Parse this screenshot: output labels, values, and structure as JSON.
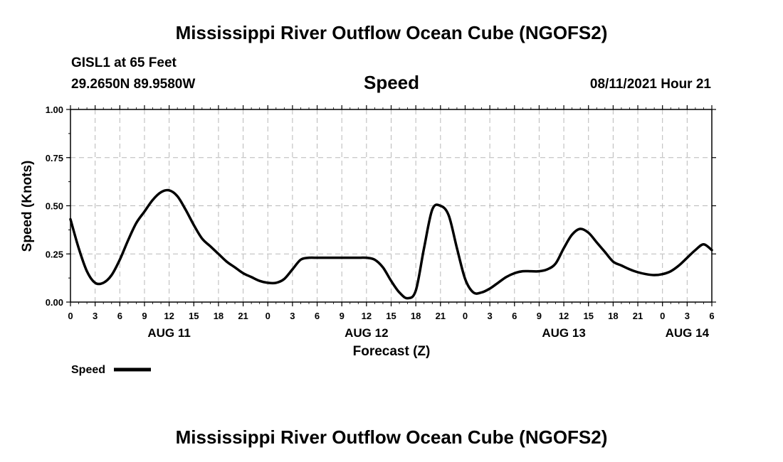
{
  "header": {
    "title_top": "Mississippi River Outflow Ocean Cube (NGOFS2)",
    "station": "GISL1 at 65 Feet",
    "coords": "29.2650N  89.9580W",
    "timestamp": "08/11/2021 Hour 21"
  },
  "footer": {
    "title_bottom": "Mississippi River Outflow Ocean Cube (NGOFS2)"
  },
  "colors": {
    "line": "#000000",
    "grid": "#b8b8b8"
  },
  "chart_data": {
    "type": "line",
    "title": "Speed",
    "xlabel": "Forecast (Z)",
    "ylabel": "Speed (Knots)",
    "xlim": [
      0,
      78
    ],
    "ylim": [
      0,
      1
    ],
    "grid": true,
    "legend_position": "bottom-left",
    "y_ticks": [
      0,
      0.25,
      0.5,
      0.75,
      1
    ],
    "y_tick_labels": [
      "0.00",
      "0.25",
      "0.50",
      "0.75",
      "1.00"
    ],
    "x_ticks": [
      0,
      3,
      6,
      9,
      12,
      15,
      18,
      21,
      24,
      27,
      30,
      33,
      36,
      39,
      42,
      45,
      48,
      51,
      54,
      57,
      60,
      63,
      66,
      69,
      72,
      75,
      78
    ],
    "x_tick_labels": [
      "0",
      "3",
      "6",
      "9",
      "12",
      "15",
      "18",
      "21",
      "0",
      "3",
      "6",
      "9",
      "12",
      "15",
      "18",
      "21",
      "0",
      "3",
      "6",
      "9",
      "12",
      "15",
      "18",
      "21",
      "0",
      "3",
      "6"
    ],
    "date_labels": [
      {
        "x": 12,
        "label": "AUG 11"
      },
      {
        "x": 36,
        "label": "AUG 12"
      },
      {
        "x": 60,
        "label": "AUG 13"
      },
      {
        "x": 75,
        "label": "AUG 14"
      }
    ],
    "series": [
      {
        "name": "Speed",
        "x": [
          0,
          1,
          2,
          3,
          4,
          5,
          6,
          7,
          8,
          9,
          10,
          11,
          12,
          13,
          14,
          15,
          16,
          17,
          18,
          19,
          20,
          21,
          22,
          23,
          24,
          25,
          26,
          27,
          28,
          29,
          30,
          31,
          32,
          33,
          34,
          35,
          36,
          37,
          38,
          39,
          40,
          41,
          42,
          43,
          44,
          45,
          46,
          47,
          48,
          49,
          50,
          51,
          52,
          53,
          54,
          55,
          56,
          57,
          58,
          59,
          60,
          61,
          62,
          63,
          64,
          65,
          66,
          67,
          68,
          69,
          70,
          71,
          72,
          73,
          74,
          75,
          76,
          77,
          78
        ],
        "values": [
          0.43,
          0.28,
          0.16,
          0.1,
          0.1,
          0.14,
          0.22,
          0.32,
          0.41,
          0.47,
          0.53,
          0.57,
          0.58,
          0.55,
          0.48,
          0.4,
          0.33,
          0.29,
          0.25,
          0.21,
          0.18,
          0.15,
          0.13,
          0.11,
          0.1,
          0.1,
          0.12,
          0.17,
          0.22,
          0.23,
          0.23,
          0.23,
          0.23,
          0.23,
          0.23,
          0.23,
          0.23,
          0.22,
          0.18,
          0.11,
          0.05,
          0.02,
          0.06,
          0.28,
          0.48,
          0.5,
          0.45,
          0.28,
          0.12,
          0.05,
          0.05,
          0.07,
          0.1,
          0.13,
          0.15,
          0.16,
          0.16,
          0.16,
          0.17,
          0.2,
          0.28,
          0.35,
          0.38,
          0.36,
          0.31,
          0.26,
          0.21,
          0.19,
          0.17,
          0.155,
          0.145,
          0.14,
          0.145,
          0.16,
          0.19,
          0.23,
          0.27,
          0.3,
          0.27
        ]
      }
    ]
  }
}
